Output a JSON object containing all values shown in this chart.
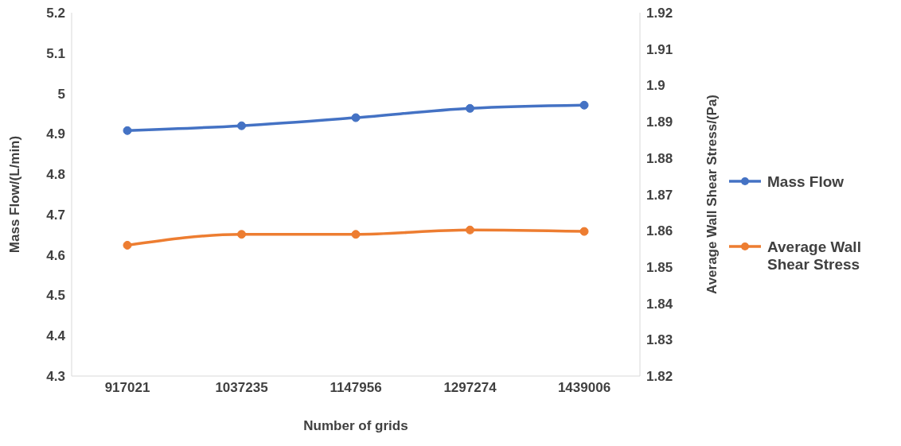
{
  "chart_data": {
    "type": "line",
    "xlabel": "Number of grids",
    "ylabel": "Mass Flow/(L/min)",
    "y2label": "Average Wall Shear Stress/(Pa)",
    "categories": [
      "917021",
      "1037235",
      "1147956",
      "1297274",
      "1439006"
    ],
    "series": [
      {
        "name": "Mass Flow",
        "color": "#4472c4",
        "values": [
          4.908,
          4.92,
          4.94,
          4.963,
          4.971
        ]
      },
      {
        "name": "Average Wall Shear Stress",
        "color": "#ed7d31",
        "axis": "y2",
        "values": [
          1.856,
          1.859,
          1.859,
          1.8602,
          1.8598
        ]
      }
    ],
    "ylim": [
      4.3,
      5.2
    ],
    "yticks": [
      4.3,
      4.4,
      4.5,
      4.6,
      4.7,
      4.8,
      4.9,
      5,
      5.1,
      5.2
    ],
    "y2lim": [
      1.82,
      1.92
    ],
    "y2ticks": [
      1.82,
      1.83,
      1.84,
      1.85,
      1.86,
      1.87,
      1.88,
      1.89,
      1.9,
      1.91,
      1.92
    ],
    "grid": false,
    "legend": "right",
    "marker": "circle",
    "line_style": "solid"
  }
}
